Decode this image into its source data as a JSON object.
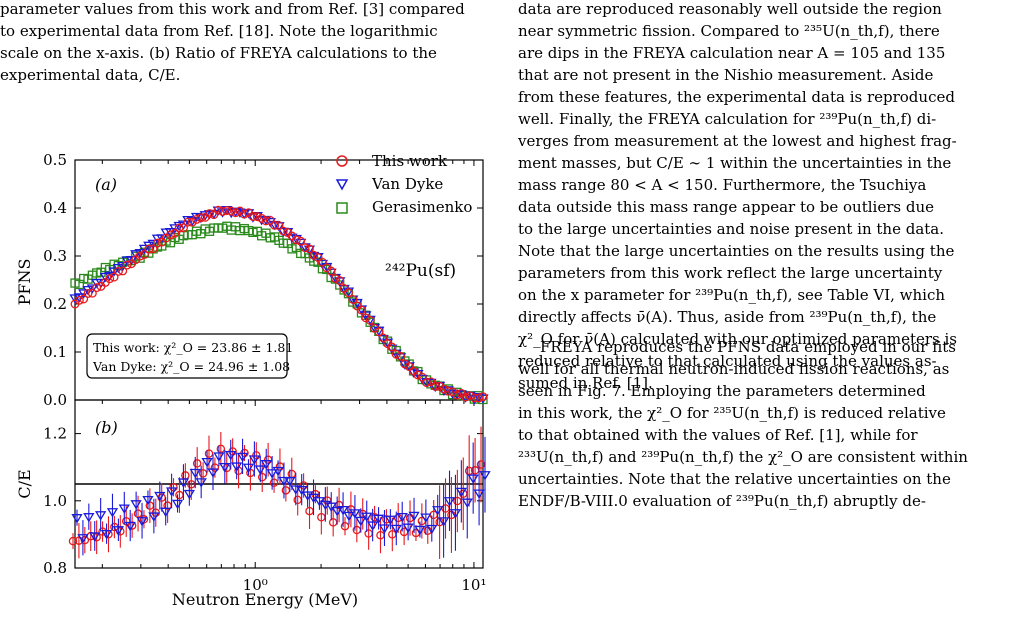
{
  "left_caption": {
    "lines": [
      "parameter values from this work and from Ref. [3] compared",
      "to experimental data from Ref. [18].  Note the logarithmic",
      "scale on the x-axis.  (b) Ratio of FREYA calculations to the",
      "experimental data, C/E."
    ]
  },
  "right_column_top": {
    "lines": [
      "data are reproduced reasonably well outside the region",
      "near symmetric fission. Compared to ²³⁵U(n_th,f), there",
      "are dips in the FREYA calculation near A = 105 and 135",
      "that are not present in the Nishio measurement. Aside",
      "from these features, the experimental data is reproduced",
      "well. Finally, the FREYA calculation for ²³⁹Pu(n_th,f) di-",
      "verges from measurement at the lowest and highest frag-",
      "ment masses, but C/E ∼ 1 within the uncertainties in the",
      "mass range 80 < A < 150. Furthermore, the Tsuchiya",
      "data outside this mass range appear to be outliers due",
      "to the large uncertainties and noise present in the data.",
      "Note that the large uncertainties on the results using the",
      "parameters from this work reflect the large uncertainty",
      "on the x parameter for ²³⁹Pu(n_th,f), see Table VI, which",
      "directly affects ν̄(A). Thus, aside from ²³⁹Pu(n_th,f), the",
      "χ²_O for ν̄(A) calculated with our optimized parameters is",
      "reduced relative to that calculated using the values as-",
      "sumed in Ref. [1]."
    ]
  },
  "right_column_bottom": {
    "lines": [
      "FREYA reproduces the PFNS data employed in our fits",
      "well for all thermal neutron-induced fission reactions, as",
      "seen in Fig. 7. Employing the parameters determined",
      "in this work, the χ²_O for ²³⁵U(n_th,f) is reduced relative",
      "to that obtained with the values of Ref. [1], while for",
      "²³³U(n_th,f) and ²³⁹Pu(n_th,f) the χ²_O are consistent within",
      "uncertainties. Note that the relative uncertainties on the",
      "ENDF/B-VIII.0 evaluation of ²³⁹Pu(n_th,f) abruptly de-"
    ]
  },
  "figure": {
    "panel_a_label": "(a)",
    "panel_b_label": "(b)",
    "reaction_label": "²⁴²Pu(sf)",
    "legend": [
      "This work",
      "Van Dyke",
      "Gerasimenko"
    ],
    "chi_box": [
      "This work: χ²_O = 23.86 ± 1.81",
      "Van Dyke: χ²_O = 24.96 ± 1.08"
    ],
    "ylabel_a": "PFNS",
    "ylabel_b": "C/E",
    "xlabel": "Neutron Energy (MeV)",
    "yticks_a": [
      "0.0",
      "0.1",
      "0.2",
      "0.3",
      "0.4",
      "0.5"
    ],
    "yticks_b": [
      "0.8",
      "1.0",
      "1.2"
    ],
    "xticks": [
      "10⁰",
      "10¹"
    ],
    "bottom_fragment": "²⁴²Pu(sf)",
    "colors": {
      "this_work": "#e8191b",
      "van_dyke": "#1a1adb",
      "gerasimenko": "#2a8a1c"
    }
  },
  "chart_data": [
    {
      "type": "scatter",
      "title": "",
      "xlabel": "Neutron Energy (MeV)",
      "ylabel": "PFNS",
      "xscale": "log",
      "xlim": [
        0.15,
        11
      ],
      "ylim": [
        0.0,
        0.5
      ],
      "grid": false,
      "legend_position": "top-right",
      "x": [
        0.15,
        0.2,
        0.3,
        0.4,
        0.5,
        0.7,
        0.9,
        1.2,
        1.6,
        2.0,
        2.5,
        3.0,
        4.0,
        5.0,
        6.0,
        8.0,
        10.0
      ],
      "series": [
        {
          "name": "This work",
          "values": [
            0.2,
            0.24,
            0.3,
            0.34,
            0.37,
            0.395,
            0.39,
            0.37,
            0.33,
            0.29,
            0.24,
            0.19,
            0.12,
            0.07,
            0.04,
            0.015,
            0.005
          ]
        },
        {
          "name": "Van Dyke",
          "values": [
            0.21,
            0.25,
            0.31,
            0.35,
            0.375,
            0.395,
            0.39,
            0.37,
            0.33,
            0.29,
            0.24,
            0.195,
            0.12,
            0.07,
            0.04,
            0.015,
            0.005
          ]
        },
        {
          "name": "Gerasimenko",
          "values": [
            0.24,
            0.27,
            0.3,
            0.33,
            0.345,
            0.36,
            0.355,
            0.34,
            0.31,
            0.28,
            0.235,
            0.19,
            0.12,
            0.075,
            0.04,
            0.015,
            0.005
          ]
        }
      ]
    },
    {
      "type": "scatter",
      "title": "",
      "xlabel": "Neutron Energy (MeV)",
      "ylabel": "C/E",
      "xscale": "log",
      "xlim": [
        0.15,
        11
      ],
      "ylim": [
        0.8,
        1.3
      ],
      "reference_line": 1.0,
      "x": [
        0.16,
        0.2,
        0.25,
        0.3,
        0.4,
        0.5,
        0.6,
        0.7,
        0.8,
        1.0,
        1.2,
        1.5,
        1.8,
        2.2,
        2.7,
        3.3,
        4.0,
        5.0,
        6.0,
        7.0,
        8.5,
        10.0
      ],
      "series": [
        {
          "name": "This work",
          "values": [
            0.88,
            0.9,
            0.92,
            0.95,
            1.0,
            1.06,
            1.11,
            1.13,
            1.12,
            1.11,
            1.09,
            1.05,
            1.0,
            0.97,
            0.95,
            0.93,
            0.92,
            0.93,
            0.92,
            0.95,
            0.98,
            1.1
          ]
        },
        {
          "name": "Van Dyke",
          "values": [
            0.92,
            0.93,
            0.95,
            0.97,
            1.0,
            1.05,
            1.1,
            1.12,
            1.12,
            1.11,
            1.09,
            1.04,
            1.01,
            0.98,
            0.96,
            0.94,
            0.93,
            0.94,
            0.93,
            0.96,
            1.0,
            1.05
          ]
        }
      ]
    }
  ]
}
